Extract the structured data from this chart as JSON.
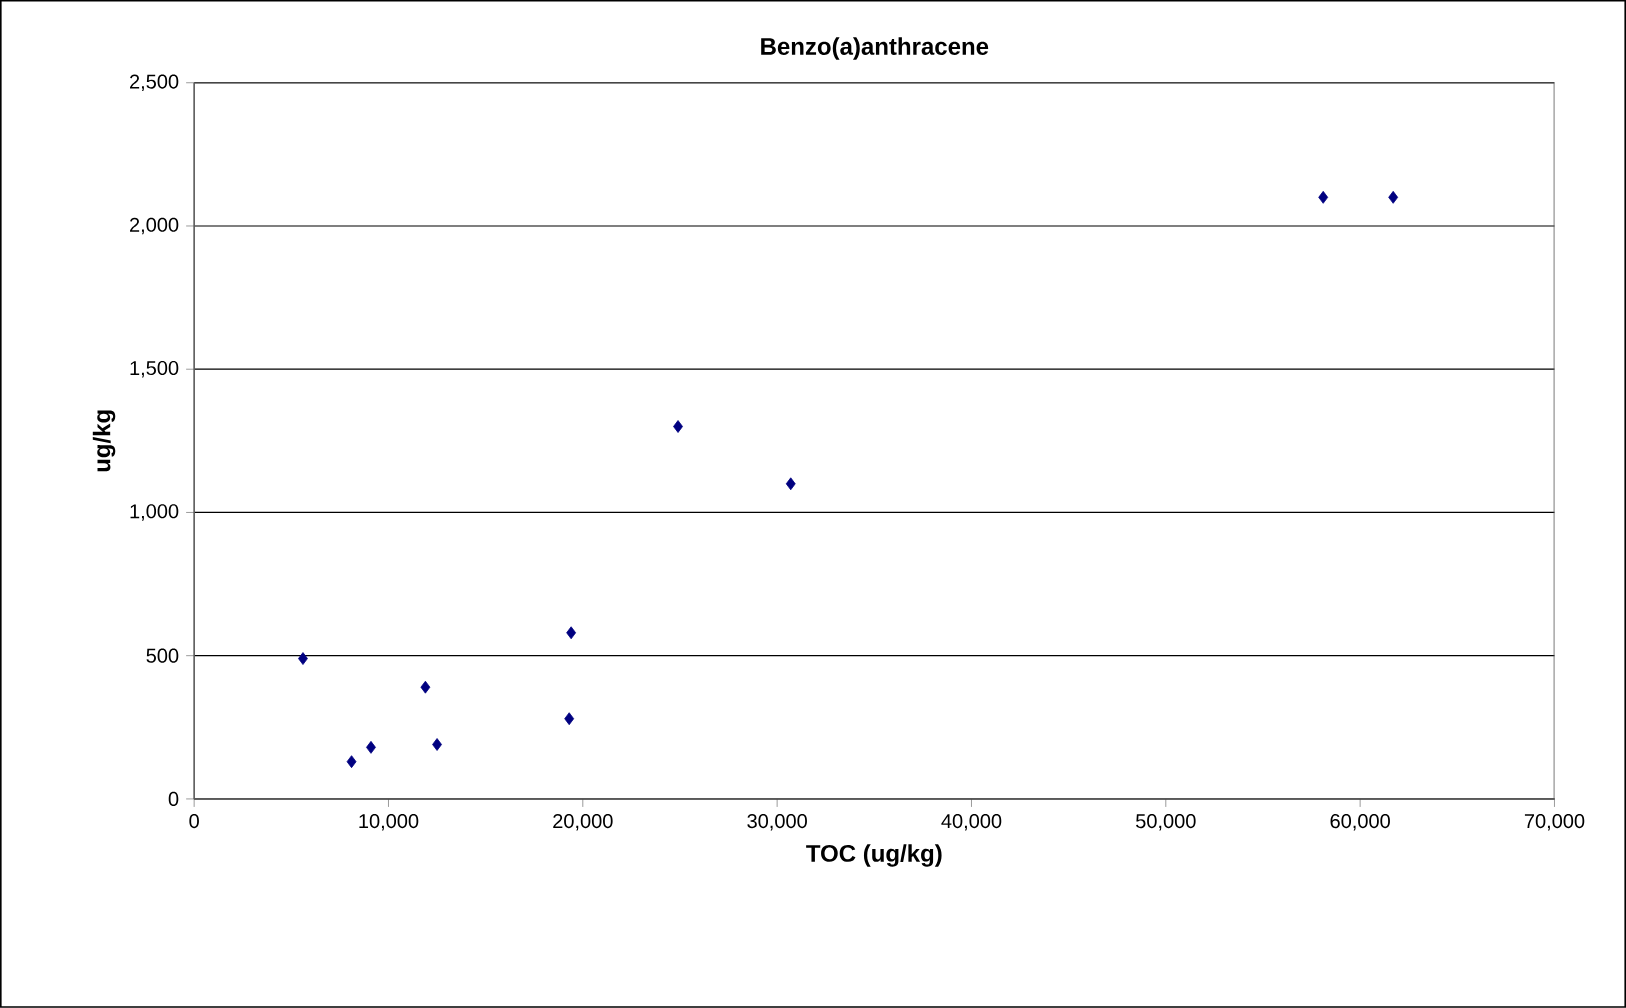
{
  "chart_data": {
    "type": "scatter",
    "title": "Benzo(a)anthracene",
    "xlabel": "TOC (ug/kg)",
    "ylabel": "ug/kg",
    "x": [
      5600,
      8100,
      9100,
      11900,
      12500,
      19300,
      19400,
      24900,
      30700,
      58100,
      61700
    ],
    "values": [
      490,
      130,
      180,
      390,
      190,
      280,
      580,
      1300,
      1100,
      2100,
      2100
    ],
    "color": "#000080",
    "marker": "diamond",
    "grid": "y",
    "xlim": [
      0,
      70000
    ],
    "ylim": [
      0,
      2500
    ],
    "xticks": [
      {
        "value": 0,
        "label": "0"
      },
      {
        "value": 10000,
        "label": "10,000"
      },
      {
        "value": 20000,
        "label": "20,000"
      },
      {
        "value": 30000,
        "label": "30,000"
      },
      {
        "value": 40000,
        "label": "40,000"
      },
      {
        "value": 50000,
        "label": "50,000"
      },
      {
        "value": 60000,
        "label": "60,000"
      },
      {
        "value": 70000,
        "label": "70,000"
      }
    ],
    "yticks": [
      {
        "value": 0,
        "label": "0"
      },
      {
        "value": 500,
        "label": "500"
      },
      {
        "value": 1000,
        "label": "1,000"
      },
      {
        "value": 1500,
        "label": "1,500"
      },
      {
        "value": 2000,
        "label": "2,000"
      },
      {
        "value": 2500,
        "label": "2,500"
      }
    ]
  }
}
